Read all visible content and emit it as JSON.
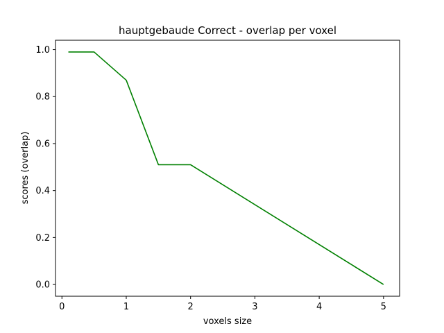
{
  "chart_data": {
    "type": "line",
    "title": "hauptgebaude Correct - overlap per voxel",
    "xlabel": "voxels size",
    "ylabel": "scores (overlap)",
    "xlim": [
      -0.1,
      5.25
    ],
    "ylim": [
      -0.05,
      1.04
    ],
    "xticks": [
      0,
      1,
      2,
      3,
      4,
      5
    ],
    "yticks": [
      0.0,
      0.2,
      0.4,
      0.6,
      0.8,
      1.0
    ],
    "xtick_labels": [
      "0",
      "1",
      "2",
      "3",
      "4",
      "5"
    ],
    "ytick_labels": [
      "0.0",
      "0.2",
      "0.4",
      "0.6",
      "0.8",
      "1.0"
    ],
    "grid": false,
    "series": [
      {
        "color": "#008000",
        "x": [
          0.1,
          0.5,
          1.0,
          1.5,
          2.0,
          5.0
        ],
        "y": [
          0.99,
          0.99,
          0.87,
          0.51,
          0.51,
          0.0
        ]
      }
    ]
  }
}
